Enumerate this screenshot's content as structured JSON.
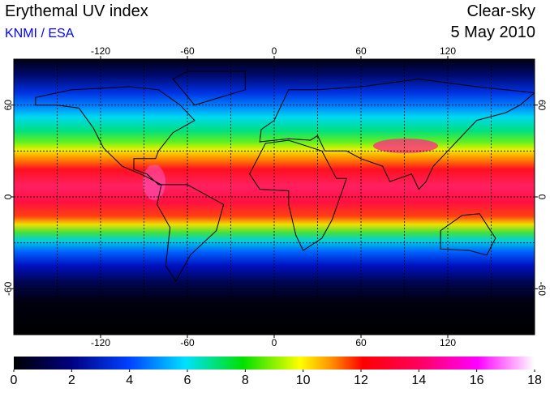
{
  "header": {
    "title": "Erythemal UV index",
    "source": "KNMI / ESA",
    "condition": "Clear-sky",
    "date": "5 May 2010"
  },
  "map": {
    "lon_range": [
      -180,
      180
    ],
    "lat_range": [
      -90,
      90
    ],
    "lon_ticks": [
      -120,
      -60,
      0,
      60,
      120
    ],
    "lat_ticks": [
      -60,
      0,
      60
    ],
    "lon_grid": [
      -150,
      -120,
      -90,
      -60,
      -30,
      0,
      30,
      60,
      90,
      120,
      150
    ],
    "lat_grid": [
      -60,
      -30,
      0,
      30,
      60
    ]
  },
  "colorbar": {
    "range": [
      0,
      18
    ],
    "ticks": [
      0,
      2,
      4,
      6,
      8,
      10,
      12,
      14,
      16,
      18
    ]
  }
}
